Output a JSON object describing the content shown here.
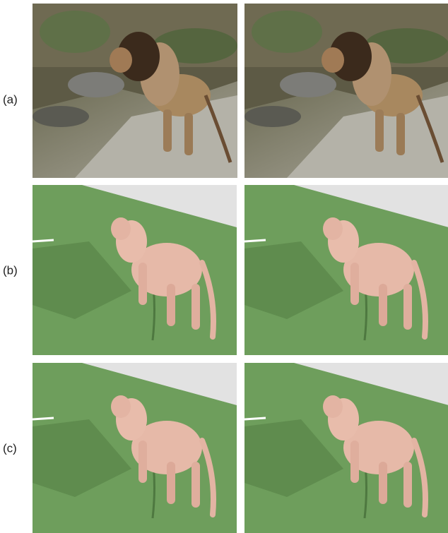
{
  "rows": [
    {
      "label": "(a)"
    },
    {
      "label": "(b)"
    },
    {
      "label": "(c)"
    }
  ]
}
